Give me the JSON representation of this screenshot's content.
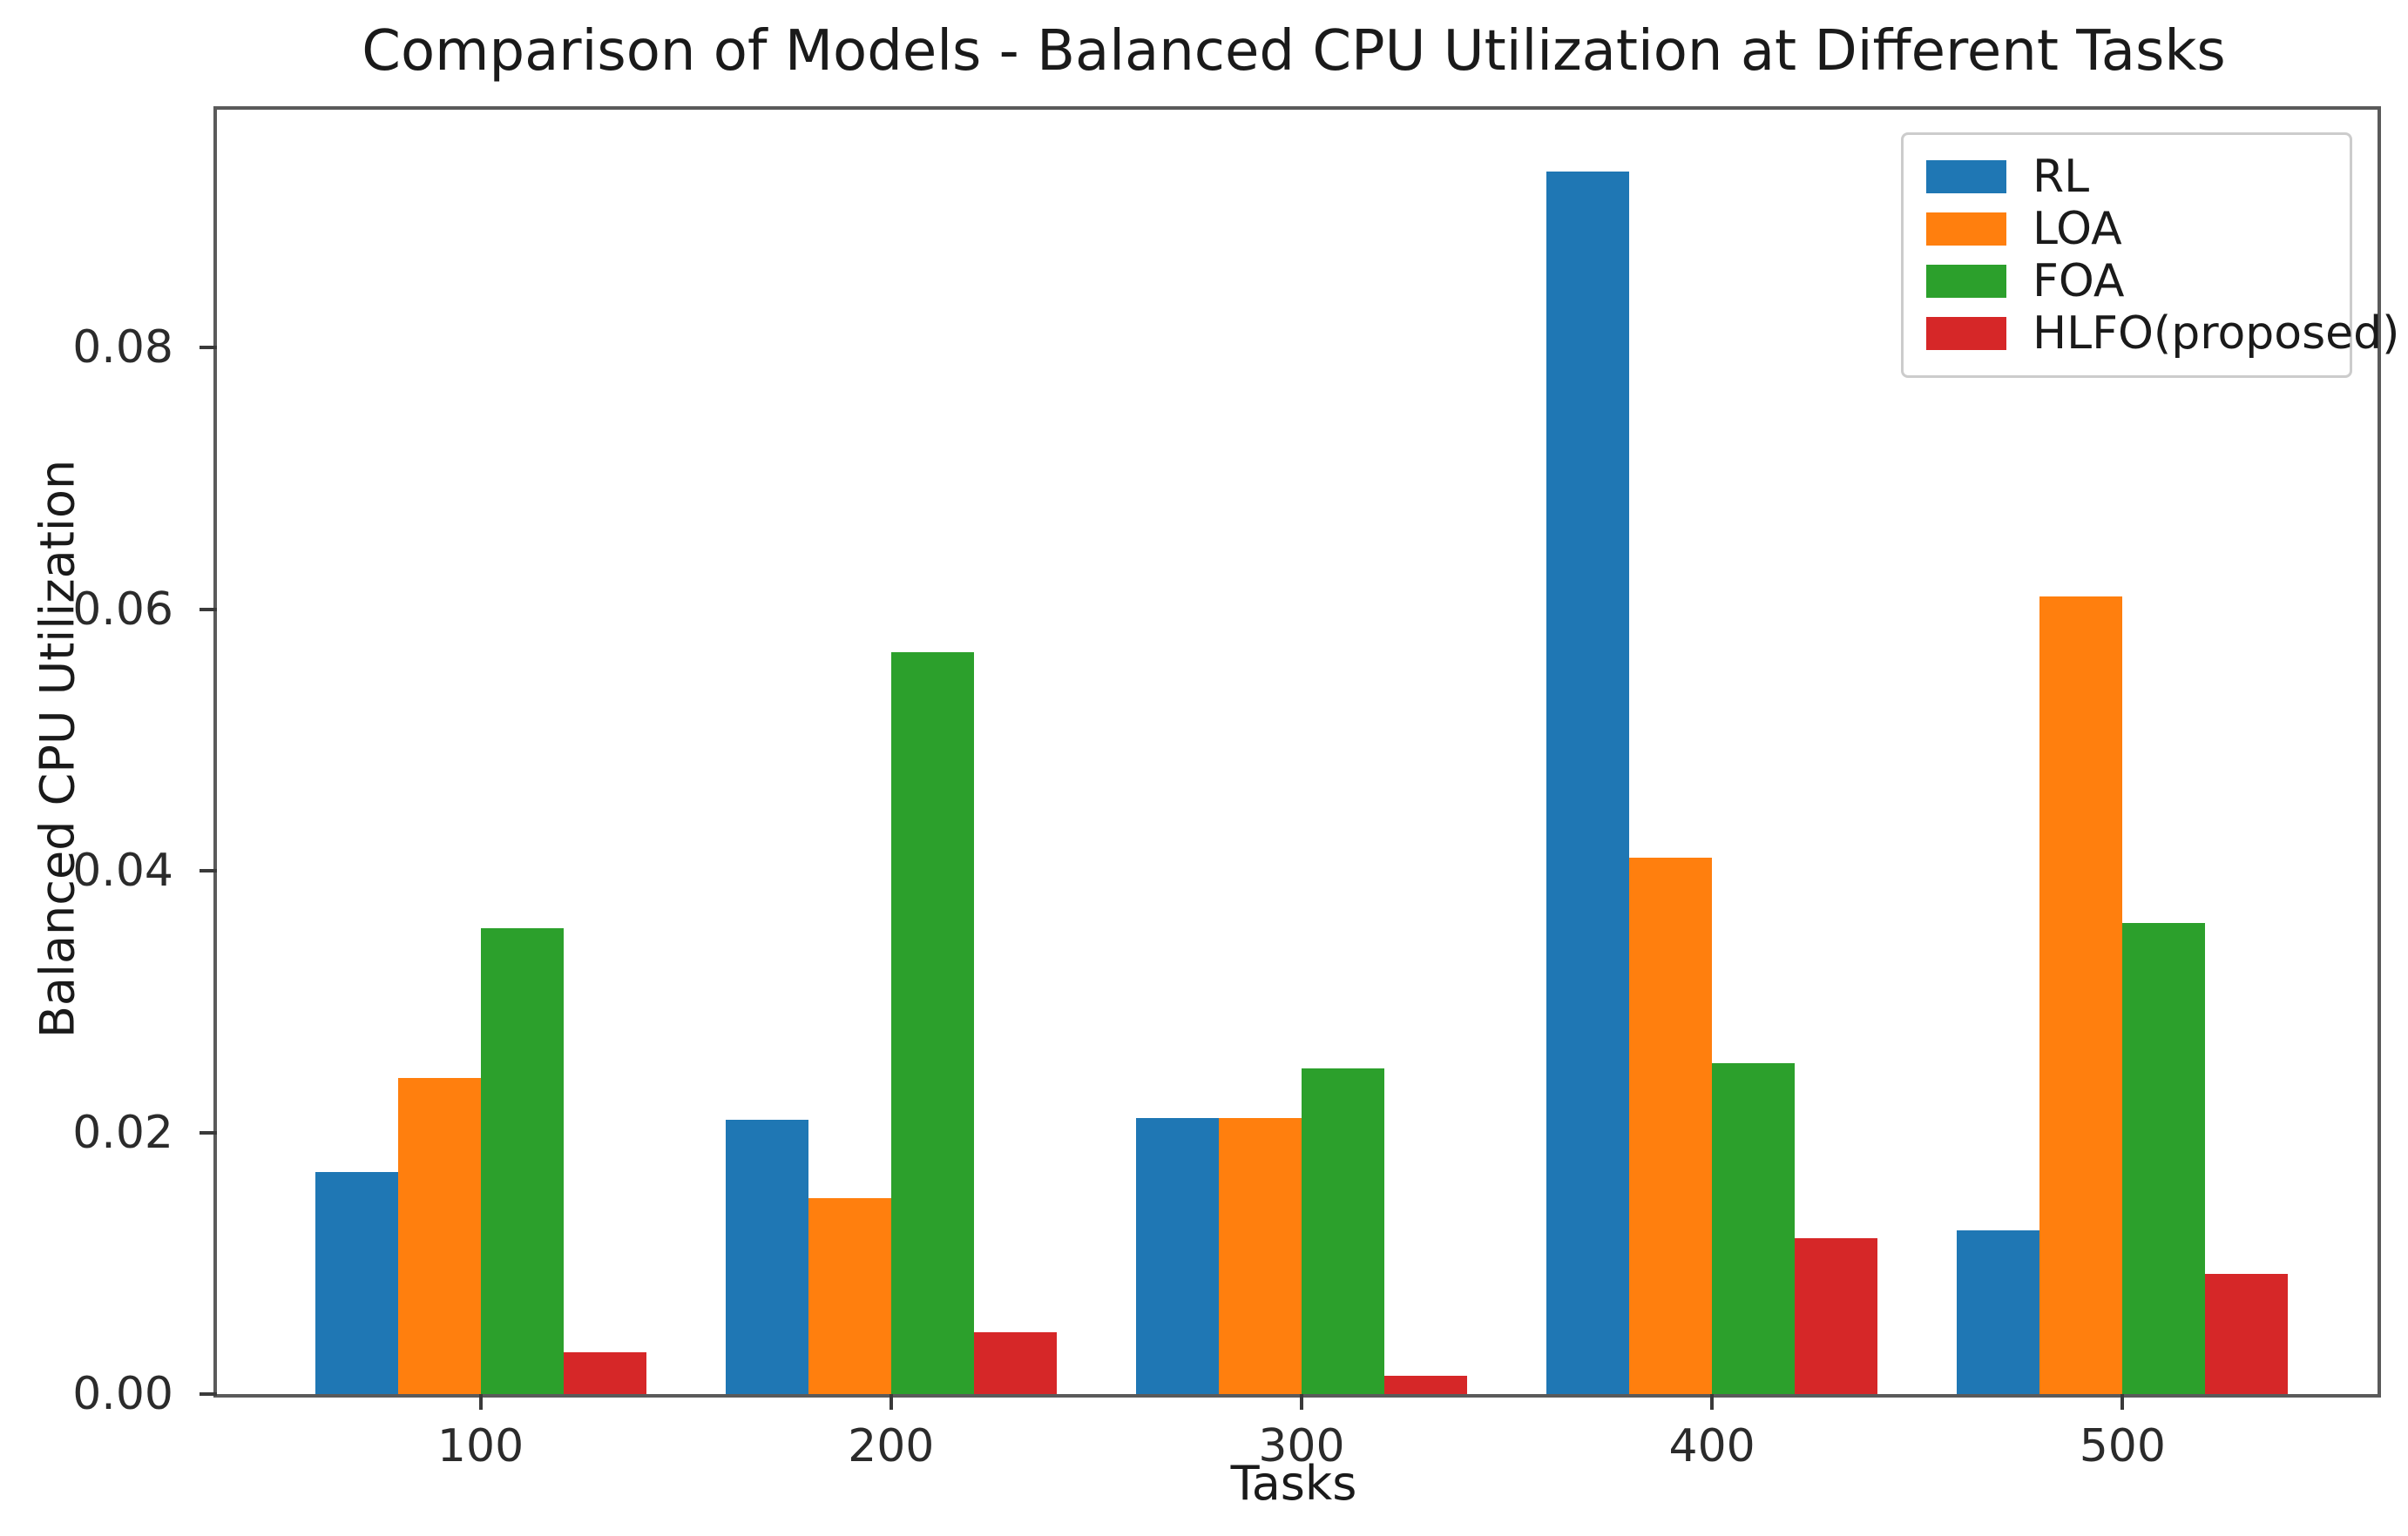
{
  "chart_data": {
    "type": "bar",
    "title": "Comparison of Models - Balanced CPU Utilization at Different Tasks",
    "xlabel": "Tasks",
    "ylabel": "Balanced CPU Utilization",
    "categories": [
      "100",
      "200",
      "300",
      "400",
      "500"
    ],
    "series": [
      {
        "name": "RL",
        "color": "#1f77b4",
        "values": [
          0.017,
          0.021,
          0.0211,
          0.0935,
          0.0125
        ]
      },
      {
        "name": "LOA",
        "color": "#ff7f0e",
        "values": [
          0.0242,
          0.015,
          0.0211,
          0.041,
          0.061
        ]
      },
      {
        "name": "FOA",
        "color": "#2ca02c",
        "values": [
          0.0356,
          0.0567,
          0.0249,
          0.0253,
          0.036
        ]
      },
      {
        "name": "HLFO(proposed)",
        "color": "#d62728",
        "values": [
          0.0032,
          0.0047,
          0.0014,
          0.0119,
          0.0092
        ]
      }
    ],
    "ylim": [
      0,
      0.0982
    ],
    "yticks": [
      0,
      0.02,
      0.04,
      0.06,
      0.08
    ],
    "ytick_labels": [
      "0.00",
      "0.02",
      "0.04",
      "0.06",
      "0.08"
    ],
    "legend_position": "upper right",
    "grid": false
  }
}
